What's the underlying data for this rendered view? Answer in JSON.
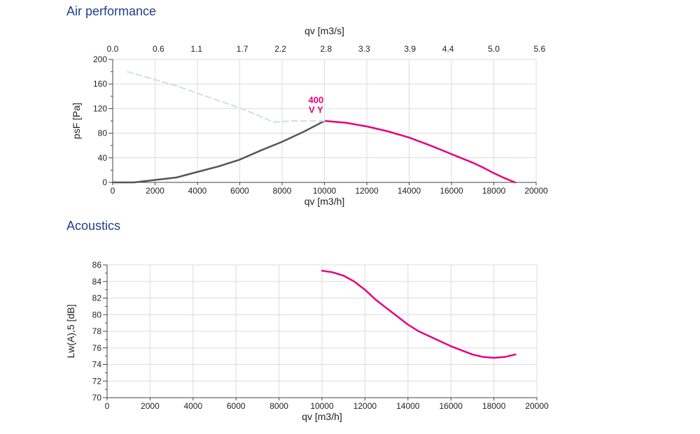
{
  "sections": {
    "air_title": "Air performance",
    "acoustics_title": "Acoustics"
  },
  "colors": {
    "title": "#1f3f8f",
    "operating_curve": "#e6007e",
    "stall_curve": "#555555",
    "dashed_curve": "#d3dcec",
    "grid": "#dcdcdc",
    "axis": "#444444"
  },
  "chart_data": [
    {
      "type": "line",
      "xlabel": "qv [m3/h]",
      "ylabel": "psF [Pa]",
      "x2label": "qv [m3/s]",
      "xlim": [
        0,
        20000
      ],
      "ylim": [
        0,
        200
      ],
      "x2lim": [
        0,
        5.556
      ],
      "xticks": [
        0,
        2000,
        4000,
        6000,
        8000,
        10000,
        12000,
        14000,
        16000,
        18000,
        20000
      ],
      "yticks": [
        0,
        40,
        80,
        120,
        160,
        200
      ],
      "x2ticks": [
        "0.0",
        "0.6",
        "1.1",
        "1.7",
        "2.2",
        "2.8",
        "3.3",
        "3.9",
        "4.4",
        "5.0",
        "5.6"
      ],
      "grid": true,
      "annotation": {
        "text": [
          "400",
          "V Y"
        ],
        "x": 9600,
        "y": 113
      },
      "series": [
        {
          "style": "solid",
          "color": "#e6007e",
          "x": [
            10000,
            11000,
            12000,
            13000,
            14000,
            15000,
            16000,
            17000,
            17500,
            18000,
            18500,
            19000
          ],
          "y": [
            100,
            97,
            91,
            83,
            73,
            60,
            46,
            32,
            24,
            15,
            7,
            0
          ]
        },
        {
          "style": "solid",
          "color": "#555555",
          "x": [
            0,
            1000,
            2000,
            3000,
            4000,
            5000,
            6000,
            7000,
            8000,
            9000,
            10000
          ],
          "y": [
            0,
            0,
            4,
            8,
            17,
            26,
            37,
            52,
            66,
            82,
            100
          ]
        },
        {
          "style": "dashed",
          "color": "#d3dcec",
          "x": [
            700,
            2000,
            3000,
            4000,
            5000,
            6000,
            7000,
            7600,
            8500,
            10000
          ],
          "y": [
            180,
            167,
            157,
            145,
            133,
            121,
            107,
            98,
            100,
            100
          ]
        }
      ]
    },
    {
      "type": "line",
      "xlabel": "qv [m3/h]",
      "ylabel": "Lw(A),5 [dB]",
      "xlim": [
        0,
        20000
      ],
      "ylim": [
        70,
        86
      ],
      "xticks": [
        0,
        2000,
        4000,
        6000,
        8000,
        10000,
        12000,
        14000,
        16000,
        18000,
        20000
      ],
      "yticks": [
        70,
        72,
        74,
        76,
        78,
        80,
        82,
        84,
        86
      ],
      "grid": true,
      "series": [
        {
          "style": "solid",
          "color": "#e6007e",
          "x": [
            10000,
            10500,
            11000,
            11500,
            12000,
            12500,
            13000,
            13500,
            14000,
            14500,
            15000,
            15500,
            16000,
            16500,
            17000,
            17500,
            18000,
            18500,
            19000
          ],
          "y": [
            85.3,
            85.1,
            84.7,
            84.0,
            83.0,
            81.8,
            80.8,
            79.8,
            78.8,
            78.0,
            77.4,
            76.8,
            76.2,
            75.7,
            75.2,
            74.9,
            74.8,
            74.9,
            75.2
          ]
        }
      ]
    }
  ]
}
